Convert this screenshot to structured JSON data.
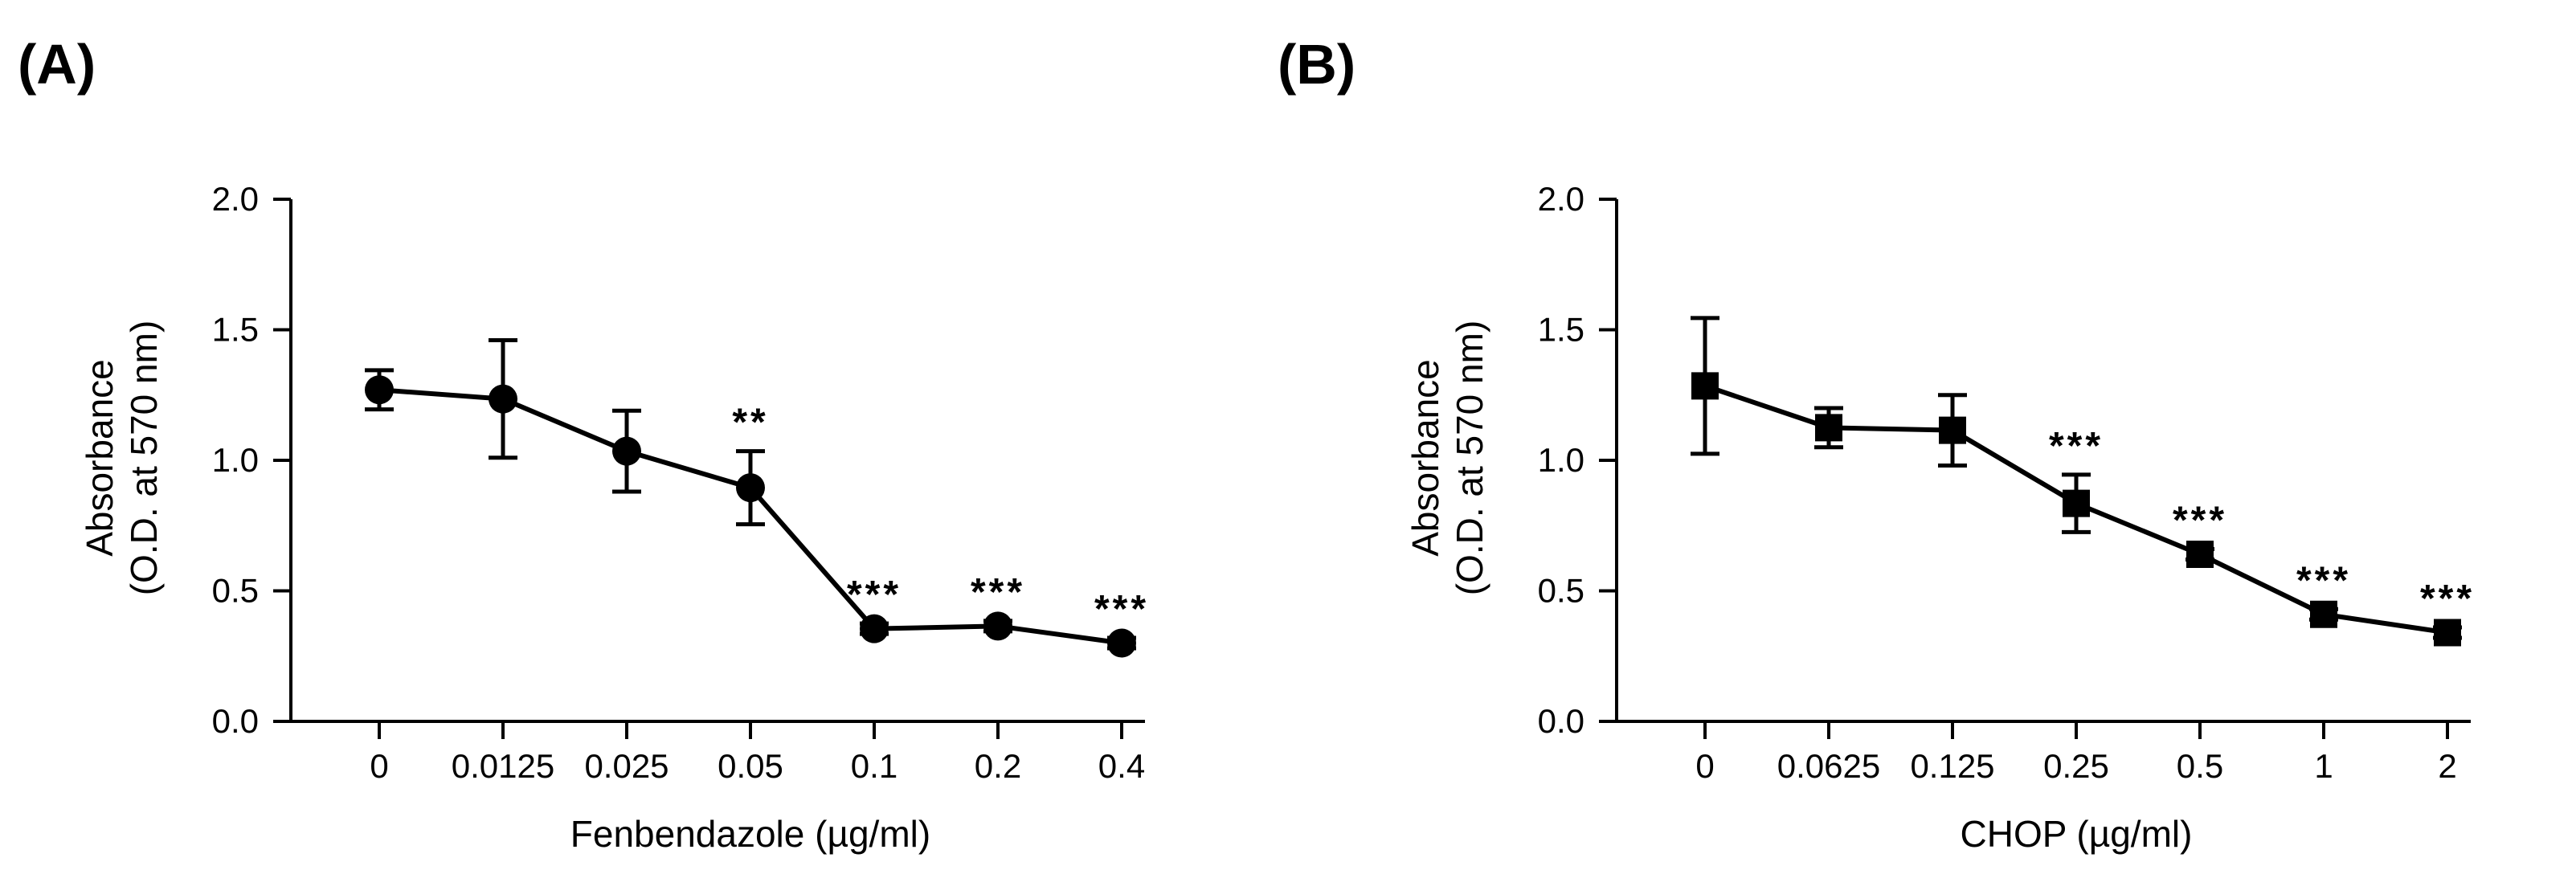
{
  "panels": {
    "a": {
      "label": "(A)"
    },
    "b": {
      "label": "(B)"
    }
  },
  "chart_data": [
    {
      "type": "line",
      "marker": "circle",
      "categories": [
        "0",
        "0.0125",
        "0.025",
        "0.05",
        "0.1",
        "0.2",
        "0.4"
      ],
      "values": [
        1.27,
        1.235,
        1.035,
        0.895,
        0.355,
        0.365,
        0.3
      ],
      "errors": [
        0.075,
        0.225,
        0.155,
        0.14,
        0.02,
        0.02,
        0.02
      ],
      "significance": [
        "",
        "",
        "",
        "**",
        "***",
        "***",
        "***"
      ],
      "xlabel": "Fenbendazole (µg/ml)",
      "ylabel": "Absorbance",
      "ylabel2": "(O.D. at 570 nm)",
      "ylim": [
        0,
        2.0
      ],
      "yticks": [
        "0.0",
        "0.5",
        "1.0",
        "1.5",
        "2.0"
      ],
      "color": "#000000"
    },
    {
      "type": "line",
      "marker": "square",
      "categories": [
        "0",
        "0.0625",
        "0.125",
        "0.25",
        "0.5",
        "1",
        "2"
      ],
      "values": [
        1.285,
        1.125,
        1.115,
        0.835,
        0.64,
        0.41,
        0.34
      ],
      "errors": [
        0.26,
        0.075,
        0.135,
        0.11,
        0.02,
        0.02,
        0.02
      ],
      "significance": [
        "",
        "",
        "",
        "***",
        "***",
        "***",
        "***"
      ],
      "xlabel": "CHOP (µg/ml)",
      "ylabel": "Absorbance",
      "ylabel2": "(O.D. at 570 nm)",
      "ylim": [
        0,
        2.0
      ],
      "yticks": [
        "0.0",
        "0.5",
        "1.0",
        "1.5",
        "2.0"
      ],
      "color": "#000000"
    }
  ]
}
